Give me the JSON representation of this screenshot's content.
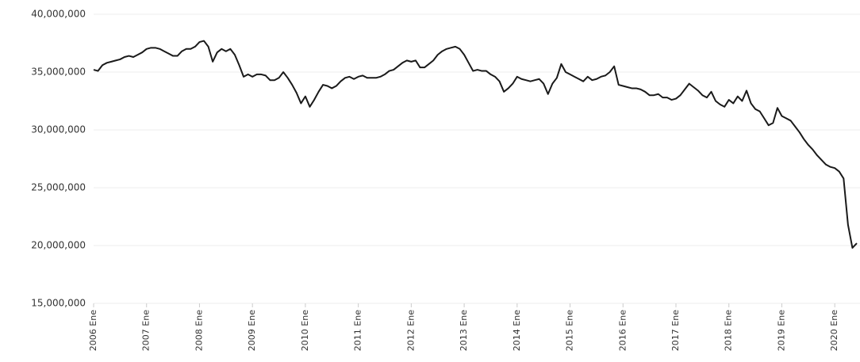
{
  "chart_data": {
    "type": "line",
    "categories": [
      "2006 Ene",
      null,
      null,
      null,
      null,
      null,
      null,
      null,
      null,
      null,
      null,
      null,
      "2007 Ene",
      null,
      null,
      null,
      null,
      null,
      null,
      null,
      null,
      null,
      null,
      null,
      "2008 Ene",
      null,
      null,
      null,
      null,
      null,
      null,
      null,
      null,
      null,
      null,
      null,
      "2009 Ene",
      null,
      null,
      null,
      null,
      null,
      null,
      null,
      null,
      null,
      null,
      null,
      "2010 Ene",
      null,
      null,
      null,
      null,
      null,
      null,
      null,
      null,
      null,
      null,
      null,
      "2011 Ene",
      null,
      null,
      null,
      null,
      null,
      null,
      null,
      null,
      null,
      null,
      null,
      "2012 Ene",
      null,
      null,
      null,
      null,
      null,
      null,
      null,
      null,
      null,
      null,
      null,
      "2013 Ene",
      null,
      null,
      null,
      null,
      null,
      null,
      null,
      null,
      null,
      null,
      null,
      "2014 Ene",
      null,
      null,
      null,
      null,
      null,
      null,
      null,
      null,
      null,
      null,
      null,
      "2015 Ene",
      null,
      null,
      null,
      null,
      null,
      null,
      null,
      null,
      null,
      null,
      null,
      "2016 Ene",
      null,
      null,
      null,
      null,
      null,
      null,
      null,
      null,
      null,
      null,
      null,
      "2017 Ene",
      null,
      null,
      null,
      null,
      null,
      null,
      null,
      null,
      null,
      null,
      null,
      "2018 Ene",
      null,
      null,
      null,
      null,
      null,
      null,
      null,
      null,
      null,
      null,
      null,
      "2019 Ene",
      null,
      null,
      null,
      null,
      null,
      null,
      null,
      null,
      null,
      null,
      null,
      "2020 Ene",
      null,
      null,
      null,
      null,
      null
    ],
    "series": [
      {
        "color": "#1a1a1a",
        "values": [
          35200000,
          35100000,
          35600000,
          35800000,
          35900000,
          36000000,
          36100000,
          36300000,
          36400000,
          36300000,
          36500000,
          36700000,
          37000000,
          37100000,
          37100000,
          37000000,
          36800000,
          36600000,
          36400000,
          36400000,
          36800000,
          37000000,
          37000000,
          37200000,
          37600000,
          37700000,
          37200000,
          35900000,
          36700000,
          37000000,
          36800000,
          37000000,
          36500000,
          35600000,
          34600000,
          34800000,
          34600000,
          34800000,
          34800000,
          34700000,
          34300000,
          34300000,
          34500000,
          35000000,
          34500000,
          33900000,
          33200000,
          32300000,
          32900000,
          32000000,
          32600000,
          33300000,
          33900000,
          33800000,
          33600000,
          33800000,
          34200000,
          34500000,
          34600000,
          34400000,
          34600000,
          34700000,
          34500000,
          34500000,
          34500000,
          34600000,
          34800000,
          35100000,
          35200000,
          35500000,
          35800000,
          36000000,
          35900000,
          36000000,
          35400000,
          35400000,
          35700000,
          36000000,
          36500000,
          36800000,
          37000000,
          37100000,
          37200000,
          37000000,
          36500000,
          35800000,
          35100000,
          35200000,
          35100000,
          35100000,
          34800000,
          34600000,
          34200000,
          33300000,
          33600000,
          34000000,
          34600000,
          34400000,
          34300000,
          34200000,
          34300000,
          34400000,
          34000000,
          33100000,
          34000000,
          34500000,
          35700000,
          35000000,
          34800000,
          34600000,
          34400000,
          34200000,
          34600000,
          34300000,
          34400000,
          34600000,
          34700000,
          35000000,
          35500000,
          33900000,
          33800000,
          33700000,
          33600000,
          33600000,
          33500000,
          33300000,
          33000000,
          33000000,
          33100000,
          32800000,
          32800000,
          32600000,
          32700000,
          33000000,
          33500000,
          34000000,
          33700000,
          33400000,
          33000000,
          32800000,
          33300000,
          32500000,
          32200000,
          32000000,
          32600000,
          32300000,
          32900000,
          32500000,
          33400000,
          32300000,
          31800000,
          31600000,
          31000000,
          30400000,
          30600000,
          31900000,
          31200000,
          31000000,
          30800000,
          30300000,
          29800000,
          29200000,
          28700000,
          28300000,
          27800000,
          27400000,
          27000000,
          26800000,
          26700000,
          26400000,
          25800000,
          21800000,
          19800000,
          20200000
        ]
      }
    ],
    "ylim": [
      15000000,
      40000000
    ],
    "yticks": [
      {
        "value": 15000000,
        "label": "15,000,000"
      },
      {
        "value": 20000000,
        "label": "20,000,000"
      },
      {
        "value": 25000000,
        "label": "25,000,000"
      },
      {
        "value": 30000000,
        "label": "30,000,000"
      },
      {
        "value": 35000000,
        "label": "35,000,000"
      },
      {
        "value": 40000000,
        "label": "40,000,000"
      }
    ],
    "grid": true
  }
}
